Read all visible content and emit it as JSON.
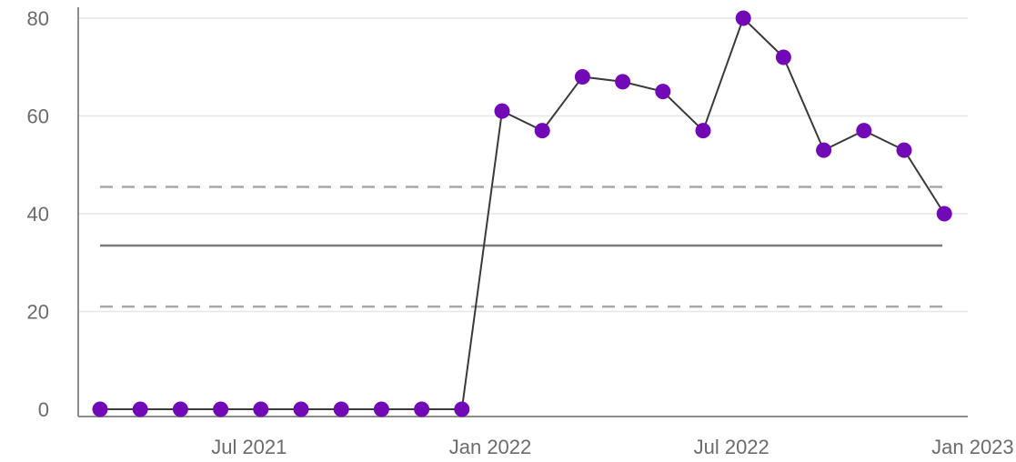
{
  "chart_data": {
    "type": "line",
    "title": "",
    "xlabel": "",
    "ylabel": "",
    "x": [
      "2021-03",
      "2021-04",
      "2021-05",
      "2021-06",
      "2021-07",
      "2021-08",
      "2021-09",
      "2021-10",
      "2021-11",
      "2021-12",
      "2022-01",
      "2022-02",
      "2022-03",
      "2022-04",
      "2022-05",
      "2022-06",
      "2022-07",
      "2022-08",
      "2022-09",
      "2022-10",
      "2022-11",
      "2022-12"
    ],
    "series": [
      {
        "values": [
          0,
          0,
          0,
          0,
          0,
          0,
          0,
          0,
          0,
          0,
          61,
          57,
          68,
          67,
          65,
          57,
          80,
          72,
          53,
          57,
          53,
          40
        ]
      }
    ],
    "reference_lines": [
      {
        "kind": "upper-limit",
        "style": "dashed",
        "value": 45.5
      },
      {
        "kind": "mean",
        "style": "solid",
        "value": 33.5
      },
      {
        "kind": "lower-limit",
        "style": "dashed",
        "value": 21
      }
    ],
    "ylim": [
      0,
      80
    ],
    "y_ticks": [
      0,
      20,
      40,
      60,
      80
    ],
    "x_ticks": [
      {
        "date": "2021-07",
        "label": "Jul 2021"
      },
      {
        "date": "2022-01",
        "label": "Jan 2022"
      },
      {
        "date": "2022-07",
        "label": "Jul 2022"
      },
      {
        "date": "2023-01",
        "label": "Jan 2023"
      }
    ],
    "grid": "horizontal",
    "colors": {
      "point": "#7209b7",
      "line": "#3a3a3a",
      "mean": "#7a7a7a",
      "limit": "#a8a8a8",
      "grid": "#e6e6e6"
    }
  }
}
